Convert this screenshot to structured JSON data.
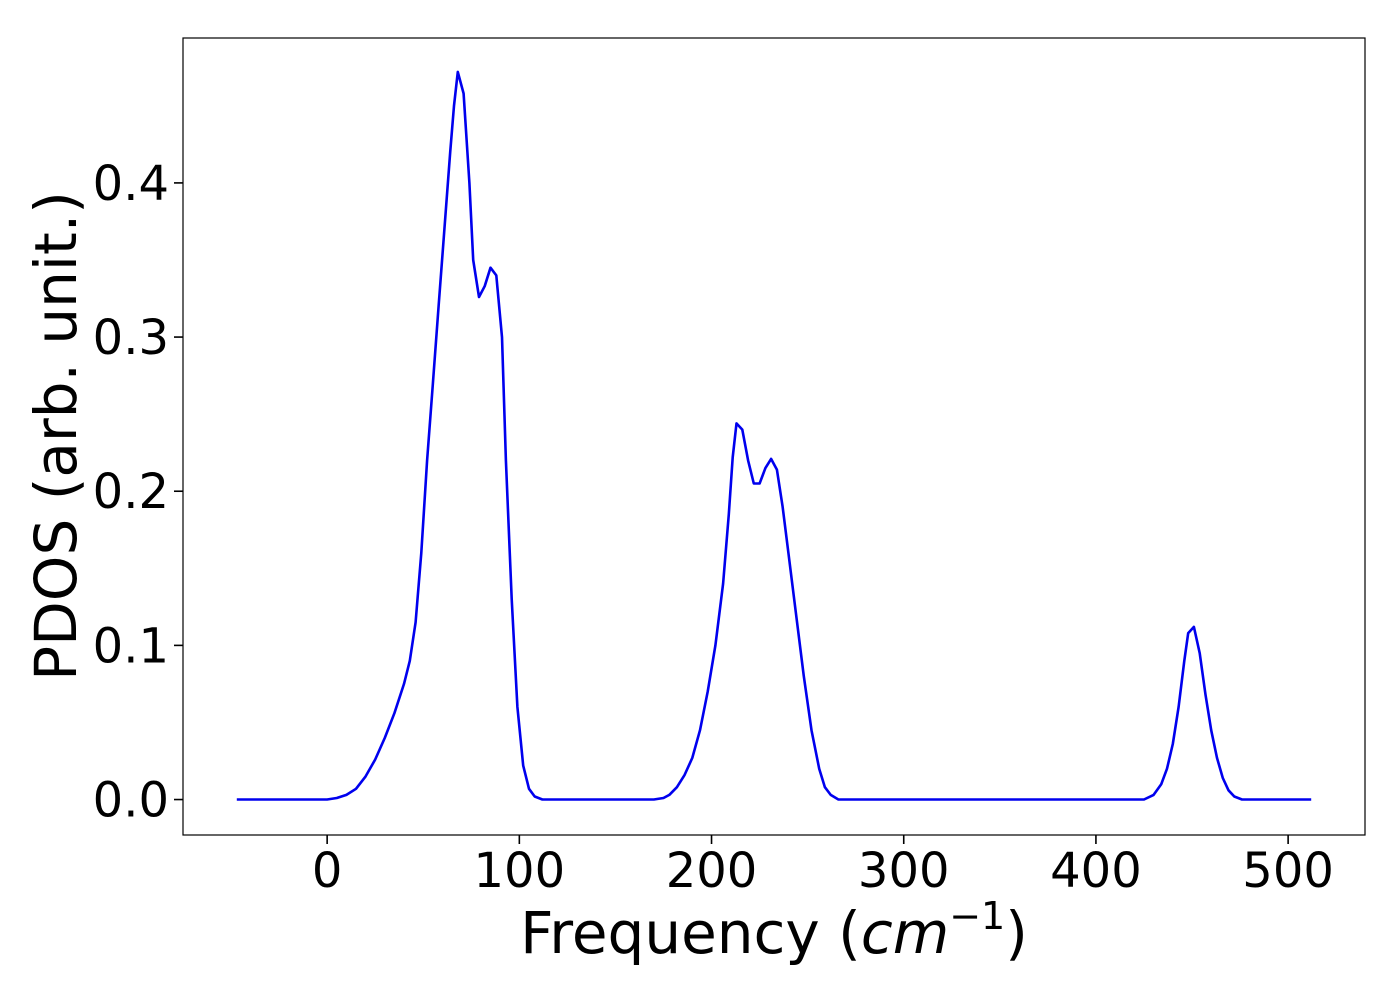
{
  "chart_data": {
    "type": "line",
    "title": "",
    "xlabel_prefix": "Frequency (",
    "xlabel_unit": "cm",
    "xlabel_exponent": "−1",
    "xlabel_suffix": ")",
    "ylabel": "PDOS (arb. unit.)",
    "xlim": [
      -75,
      540
    ],
    "ylim": [
      -0.023,
      0.494
    ],
    "xticks": [
      0,
      100,
      200,
      300,
      400,
      500
    ],
    "xtick_labels": [
      "0",
      "100",
      "200",
      "300",
      "400",
      "500"
    ],
    "yticks": [
      0.0,
      0.1,
      0.2,
      0.3,
      0.4
    ],
    "ytick_labels": [
      "0.0",
      "0.1",
      "0.2",
      "0.3",
      "0.4"
    ],
    "grid": false,
    "series": [
      {
        "color": "#0000ee",
        "points": [
          [
            -47,
            0.0
          ],
          [
            -20,
            0.0
          ],
          [
            0,
            0.0
          ],
          [
            5,
            0.001
          ],
          [
            10,
            0.003
          ],
          [
            15,
            0.007
          ],
          [
            20,
            0.015
          ],
          [
            25,
            0.026
          ],
          [
            30,
            0.04
          ],
          [
            35,
            0.056
          ],
          [
            40,
            0.075
          ],
          [
            43,
            0.09
          ],
          [
            46,
            0.115
          ],
          [
            49,
            0.16
          ],
          [
            52,
            0.22
          ],
          [
            55,
            0.27
          ],
          [
            58,
            0.32
          ],
          [
            61,
            0.37
          ],
          [
            64,
            0.42
          ],
          [
            66,
            0.45
          ],
          [
            68,
            0.472
          ],
          [
            71,
            0.458
          ],
          [
            74,
            0.4
          ],
          [
            76,
            0.35
          ],
          [
            79,
            0.326
          ],
          [
            82,
            0.333
          ],
          [
            85,
            0.345
          ],
          [
            88,
            0.34
          ],
          [
            91,
            0.3
          ],
          [
            93,
            0.22
          ],
          [
            96,
            0.13
          ],
          [
            99,
            0.06
          ],
          [
            102,
            0.022
          ],
          [
            105,
            0.007
          ],
          [
            108,
            0.002
          ],
          [
            112,
            0.0
          ],
          [
            130,
            0.0
          ],
          [
            150,
            0.0
          ],
          [
            170,
            0.0
          ],
          [
            175,
            0.001
          ],
          [
            178,
            0.003
          ],
          [
            182,
            0.008
          ],
          [
            186,
            0.016
          ],
          [
            190,
            0.027
          ],
          [
            194,
            0.045
          ],
          [
            198,
            0.07
          ],
          [
            202,
            0.1
          ],
          [
            206,
            0.14
          ],
          [
            209,
            0.185
          ],
          [
            211,
            0.222
          ],
          [
            213,
            0.244
          ],
          [
            216,
            0.24
          ],
          [
            219,
            0.22
          ],
          [
            222,
            0.205
          ],
          [
            225,
            0.205
          ],
          [
            228,
            0.215
          ],
          [
            231,
            0.221
          ],
          [
            234,
            0.214
          ],
          [
            237,
            0.19
          ],
          [
            240,
            0.16
          ],
          [
            244,
            0.12
          ],
          [
            248,
            0.08
          ],
          [
            252,
            0.045
          ],
          [
            256,
            0.02
          ],
          [
            259,
            0.008
          ],
          [
            262,
            0.003
          ],
          [
            266,
            0.0
          ],
          [
            300,
            0.0
          ],
          [
            350,
            0.0
          ],
          [
            400,
            0.0
          ],
          [
            425,
            0.0
          ],
          [
            430,
            0.003
          ],
          [
            434,
            0.01
          ],
          [
            437,
            0.02
          ],
          [
            440,
            0.036
          ],
          [
            443,
            0.06
          ],
          [
            446,
            0.09
          ],
          [
            448,
            0.108
          ],
          [
            451,
            0.112
          ],
          [
            454,
            0.095
          ],
          [
            457,
            0.068
          ],
          [
            460,
            0.045
          ],
          [
            463,
            0.027
          ],
          [
            466,
            0.014
          ],
          [
            469,
            0.006
          ],
          [
            472,
            0.002
          ],
          [
            476,
            0.0
          ],
          [
            490,
            0.0
          ],
          [
            512,
            0.0
          ]
        ]
      }
    ]
  }
}
